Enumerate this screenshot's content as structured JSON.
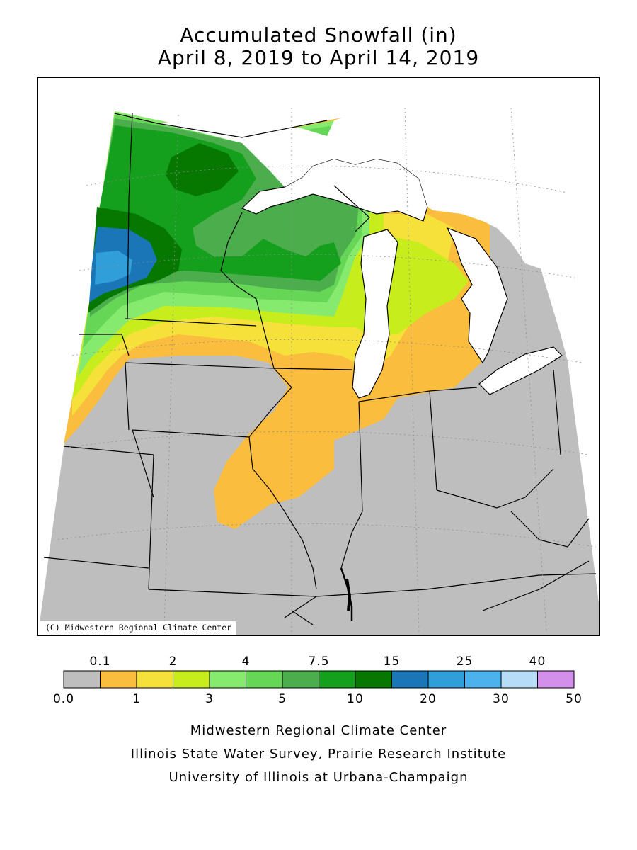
{
  "header": {
    "title_line1": "Accumulated Snowfall (in)",
    "title_line2": "April 8, 2019 to April 14, 2019"
  },
  "map": {
    "copyright": "(C) Midwestern Regional Climate Center",
    "colors": {
      "no_data": "#bebebe",
      "lake": "#ffffff",
      "border": "#000000"
    }
  },
  "legend": {
    "units": "in",
    "bins": [
      {
        "low": 0.0,
        "high": 0.1,
        "color": "#bebebe"
      },
      {
        "low": 0.1,
        "high": 1,
        "color": "#fbbd3e"
      },
      {
        "low": 1,
        "high": 2,
        "color": "#f5e13a"
      },
      {
        "low": 2,
        "high": 3,
        "color": "#c7ee1c"
      },
      {
        "low": 3,
        "high": 4,
        "color": "#86ea6e"
      },
      {
        "low": 4,
        "high": 5,
        "color": "#66d657"
      },
      {
        "low": 5,
        "high": 7.5,
        "color": "#4cad4c"
      },
      {
        "low": 7.5,
        "high": 10,
        "color": "#14a01c"
      },
      {
        "low": 10,
        "high": 15,
        "color": "#067800"
      },
      {
        "low": 15,
        "high": 20,
        "color": "#1a76b6"
      },
      {
        "low": 20,
        "high": 25,
        "color": "#309ed8"
      },
      {
        "low": 25,
        "high": 30,
        "color": "#4bb2ee"
      },
      {
        "low": 30,
        "high": 40,
        "color": "#b6dcf8"
      },
      {
        "low": 40,
        "high": 50,
        "color": "#d48fea"
      }
    ],
    "top_labels": [
      "0.1",
      "2",
      "4",
      "7.5",
      "15",
      "25",
      "40"
    ],
    "bottom_labels": [
      "0.0",
      "1",
      "3",
      "5",
      "10",
      "20",
      "30",
      "50"
    ]
  },
  "footer": {
    "line1": "Midwestern Regional Climate Center",
    "line2": "Illinois State Water Survey, Prairie Research Institute",
    "line3": "University of Illinois at Urbana-Champaign"
  }
}
